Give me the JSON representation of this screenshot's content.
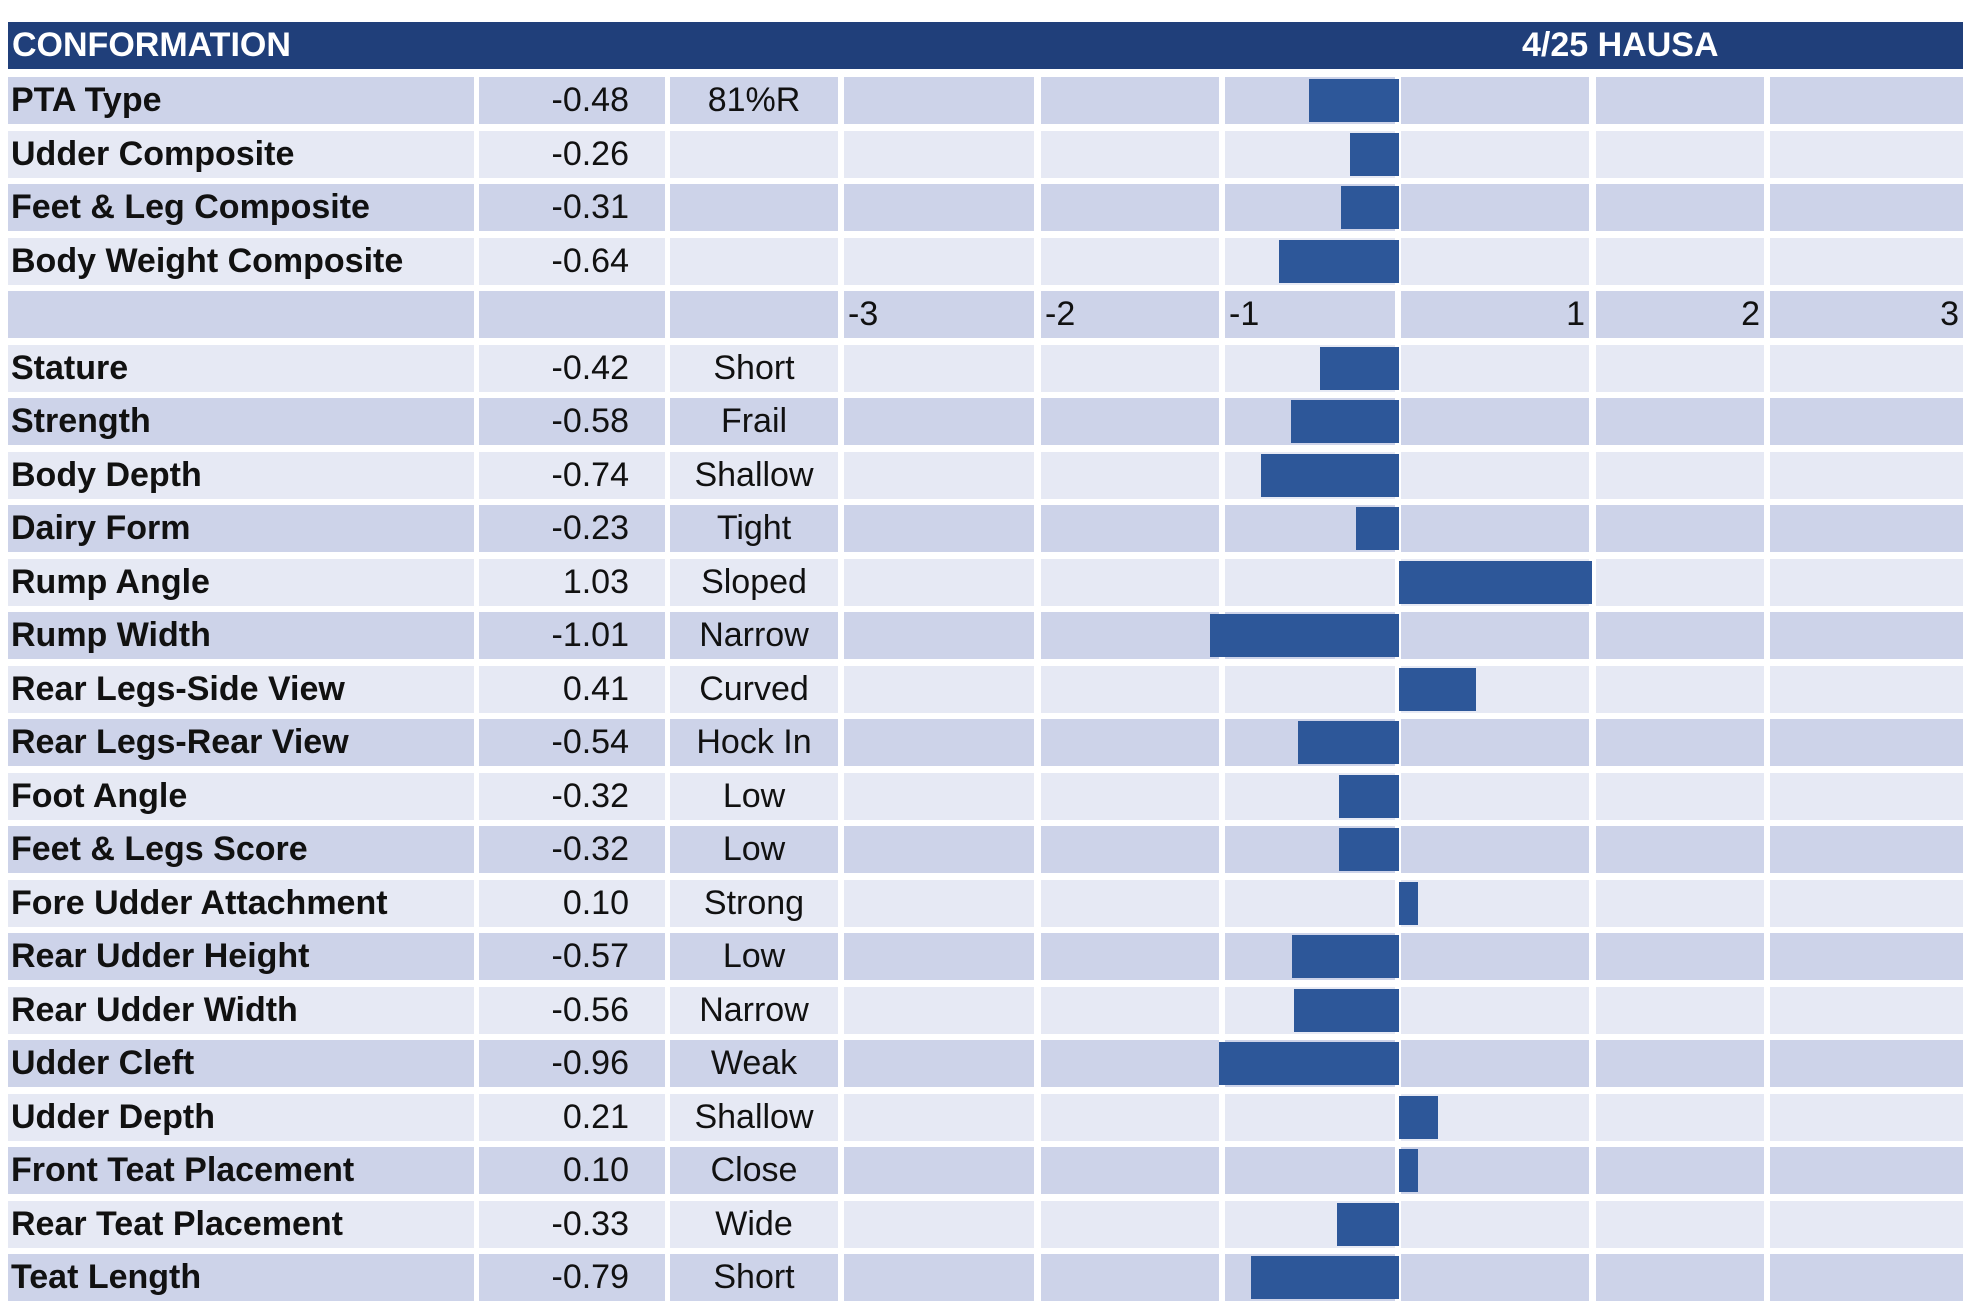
{
  "header": {
    "title": "CONFORMATION",
    "subtitle": "4/25 HAUSA"
  },
  "colors": {
    "header": "#203f7a",
    "row_dark": "#cdd3e9",
    "row_light": "#e6e9f4",
    "bar": "#2d5799"
  },
  "chart_data": {
    "type": "bar",
    "orientation": "horizontal",
    "xlim": [
      -3,
      3
    ],
    "axis_ticks": [
      "-3",
      "-2",
      "-1",
      "1",
      "2",
      "3"
    ],
    "composites": [
      {
        "label": "PTA Type",
        "value_text": "-0.48",
        "value": -0.48,
        "desc": "81%R"
      },
      {
        "label": "Udder Composite",
        "value_text": "-0.26",
        "value": -0.26,
        "desc": ""
      },
      {
        "label": "Feet & Leg Composite",
        "value_text": "-0.31",
        "value": -0.31,
        "desc": ""
      },
      {
        "label": "Body Weight Composite",
        "value_text": "-0.64",
        "value": -0.64,
        "desc": ""
      }
    ],
    "traits": [
      {
        "label": "Stature",
        "value_text": "-0.42",
        "value": -0.42,
        "desc": "Short"
      },
      {
        "label": "Strength",
        "value_text": "-0.58",
        "value": -0.58,
        "desc": "Frail"
      },
      {
        "label": "Body Depth",
        "value_text": "-0.74",
        "value": -0.74,
        "desc": "Shallow"
      },
      {
        "label": "Dairy Form",
        "value_text": "-0.23",
        "value": -0.23,
        "desc": "Tight"
      },
      {
        "label": "Rump Angle",
        "value_text": "1.03",
        "value": 1.03,
        "desc": "Sloped"
      },
      {
        "label": "Rump Width",
        "value_text": "-1.01",
        "value": -1.01,
        "desc": "Narrow"
      },
      {
        "label": "Rear Legs-Side View",
        "value_text": "0.41",
        "value": 0.41,
        "desc": "Curved"
      },
      {
        "label": "Rear Legs-Rear View",
        "value_text": "-0.54",
        "value": -0.54,
        "desc": "Hock In"
      },
      {
        "label": "Foot Angle",
        "value_text": "-0.32",
        "value": -0.32,
        "desc": "Low"
      },
      {
        "label": "Feet & Legs Score",
        "value_text": "-0.32",
        "value": -0.32,
        "desc": "Low"
      },
      {
        "label": "Fore Udder Attachment",
        "value_text": "0.10",
        "value": 0.1,
        "desc": "Strong"
      },
      {
        "label": "Rear Udder Height",
        "value_text": "-0.57",
        "value": -0.57,
        "desc": "Low"
      },
      {
        "label": "Rear Udder Width",
        "value_text": "-0.56",
        "value": -0.56,
        "desc": "Narrow"
      },
      {
        "label": "Udder Cleft",
        "value_text": "-0.96",
        "value": -0.96,
        "desc": "Weak"
      },
      {
        "label": "Udder Depth",
        "value_text": "0.21",
        "value": 0.21,
        "desc": "Shallow"
      },
      {
        "label": "Front Teat Placement",
        "value_text": "0.10",
        "value": 0.1,
        "desc": "Close"
      },
      {
        "label": "Rear Teat Placement",
        "value_text": "-0.33",
        "value": -0.33,
        "desc": "Wide"
      },
      {
        "label": "Teat Length",
        "value_text": "-0.79",
        "value": -0.79,
        "desc": "Short"
      }
    ]
  }
}
